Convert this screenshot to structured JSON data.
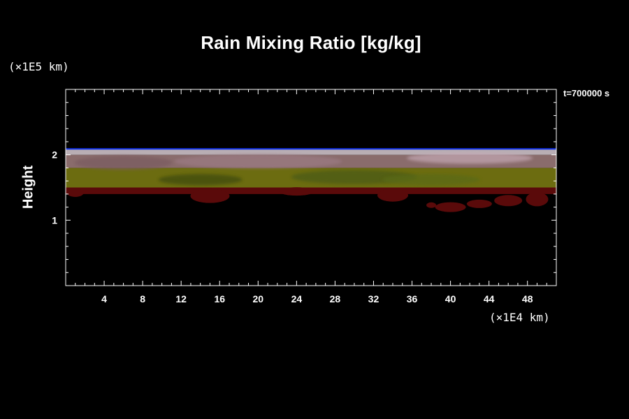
{
  "chart_data": {
    "type": "heatmap",
    "title": "Rain Mixing Ratio [kg/kg]",
    "ylabel": "Height",
    "xlabel": "",
    "x_unit": "(×1E4 km)",
    "y_unit": "(×1E5 km)",
    "time_label": "t=700000 s",
    "xlim": [
      0,
      51
    ],
    "ylim": [
      0,
      3
    ],
    "x_ticks": [
      4,
      8,
      12,
      16,
      20,
      24,
      28,
      32,
      36,
      40,
      44,
      48
    ],
    "y_ticks": [
      1,
      2
    ],
    "grid": false,
    "layers": [
      {
        "color": "#5a0a0a",
        "y_range": [
          1.4,
          1.5
        ]
      },
      {
        "color": "#6c6c10",
        "y_range": [
          1.5,
          1.8
        ]
      },
      {
        "color": "#8a6c6c",
        "y_range": [
          1.8,
          2.0
        ]
      },
      {
        "color": "#b9aeb4",
        "y_range": [
          2.0,
          2.08
        ]
      },
      {
        "color": "#1438ff",
        "y_range": [
          2.08,
          2.1
        ]
      }
    ]
  }
}
